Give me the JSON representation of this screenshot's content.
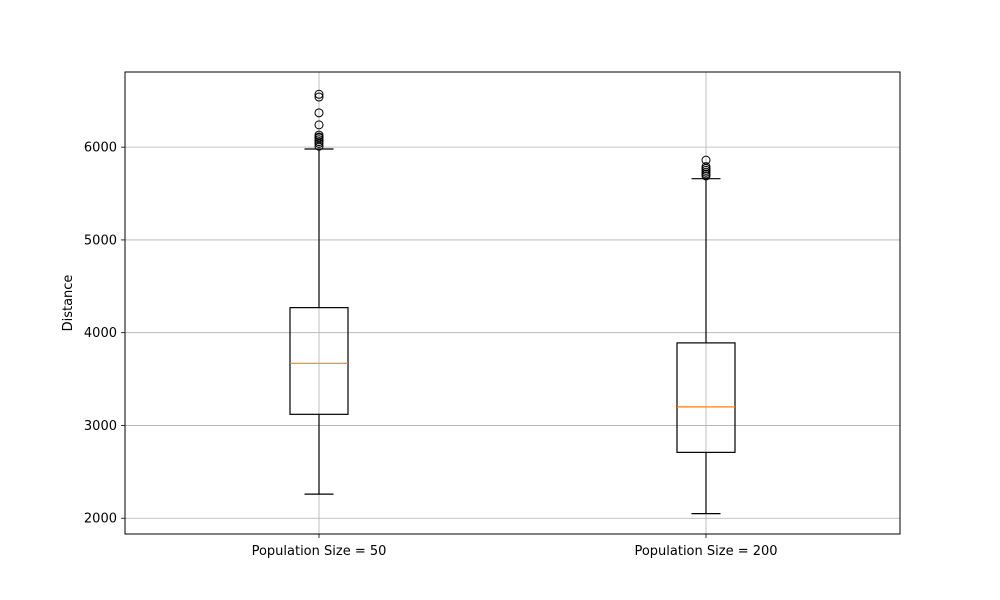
{
  "chart_data": {
    "type": "box",
    "title": "",
    "xlabel": "",
    "ylabel": "Distance",
    "ylim": [
      1830,
      6810
    ],
    "yticks": [
      2000,
      3000,
      4000,
      5000,
      6000
    ],
    "grid": true,
    "categories": [
      "Population Size = 50",
      "Population Size = 200"
    ],
    "boxes": [
      {
        "category": "Population Size = 50",
        "whisker_low": 2260,
        "q1": 3120,
        "median": 3670,
        "q3": 4270,
        "whisker_high": 5980,
        "outliers": [
          6010,
          6040,
          6060,
          6080,
          6100,
          6110,
          6130,
          6240,
          6370,
          6540,
          6570
        ]
      },
      {
        "category": "Population Size = 200",
        "whisker_low": 2050,
        "q1": 2710,
        "median": 3200,
        "q3": 3890,
        "whisker_high": 5660,
        "outliers": [
          5690,
          5710,
          5730,
          5750,
          5770,
          5790,
          5860
        ]
      }
    ],
    "colors": {
      "box": "#000000",
      "median": "#ff7f0e",
      "grid": "#b0b0b0"
    }
  }
}
